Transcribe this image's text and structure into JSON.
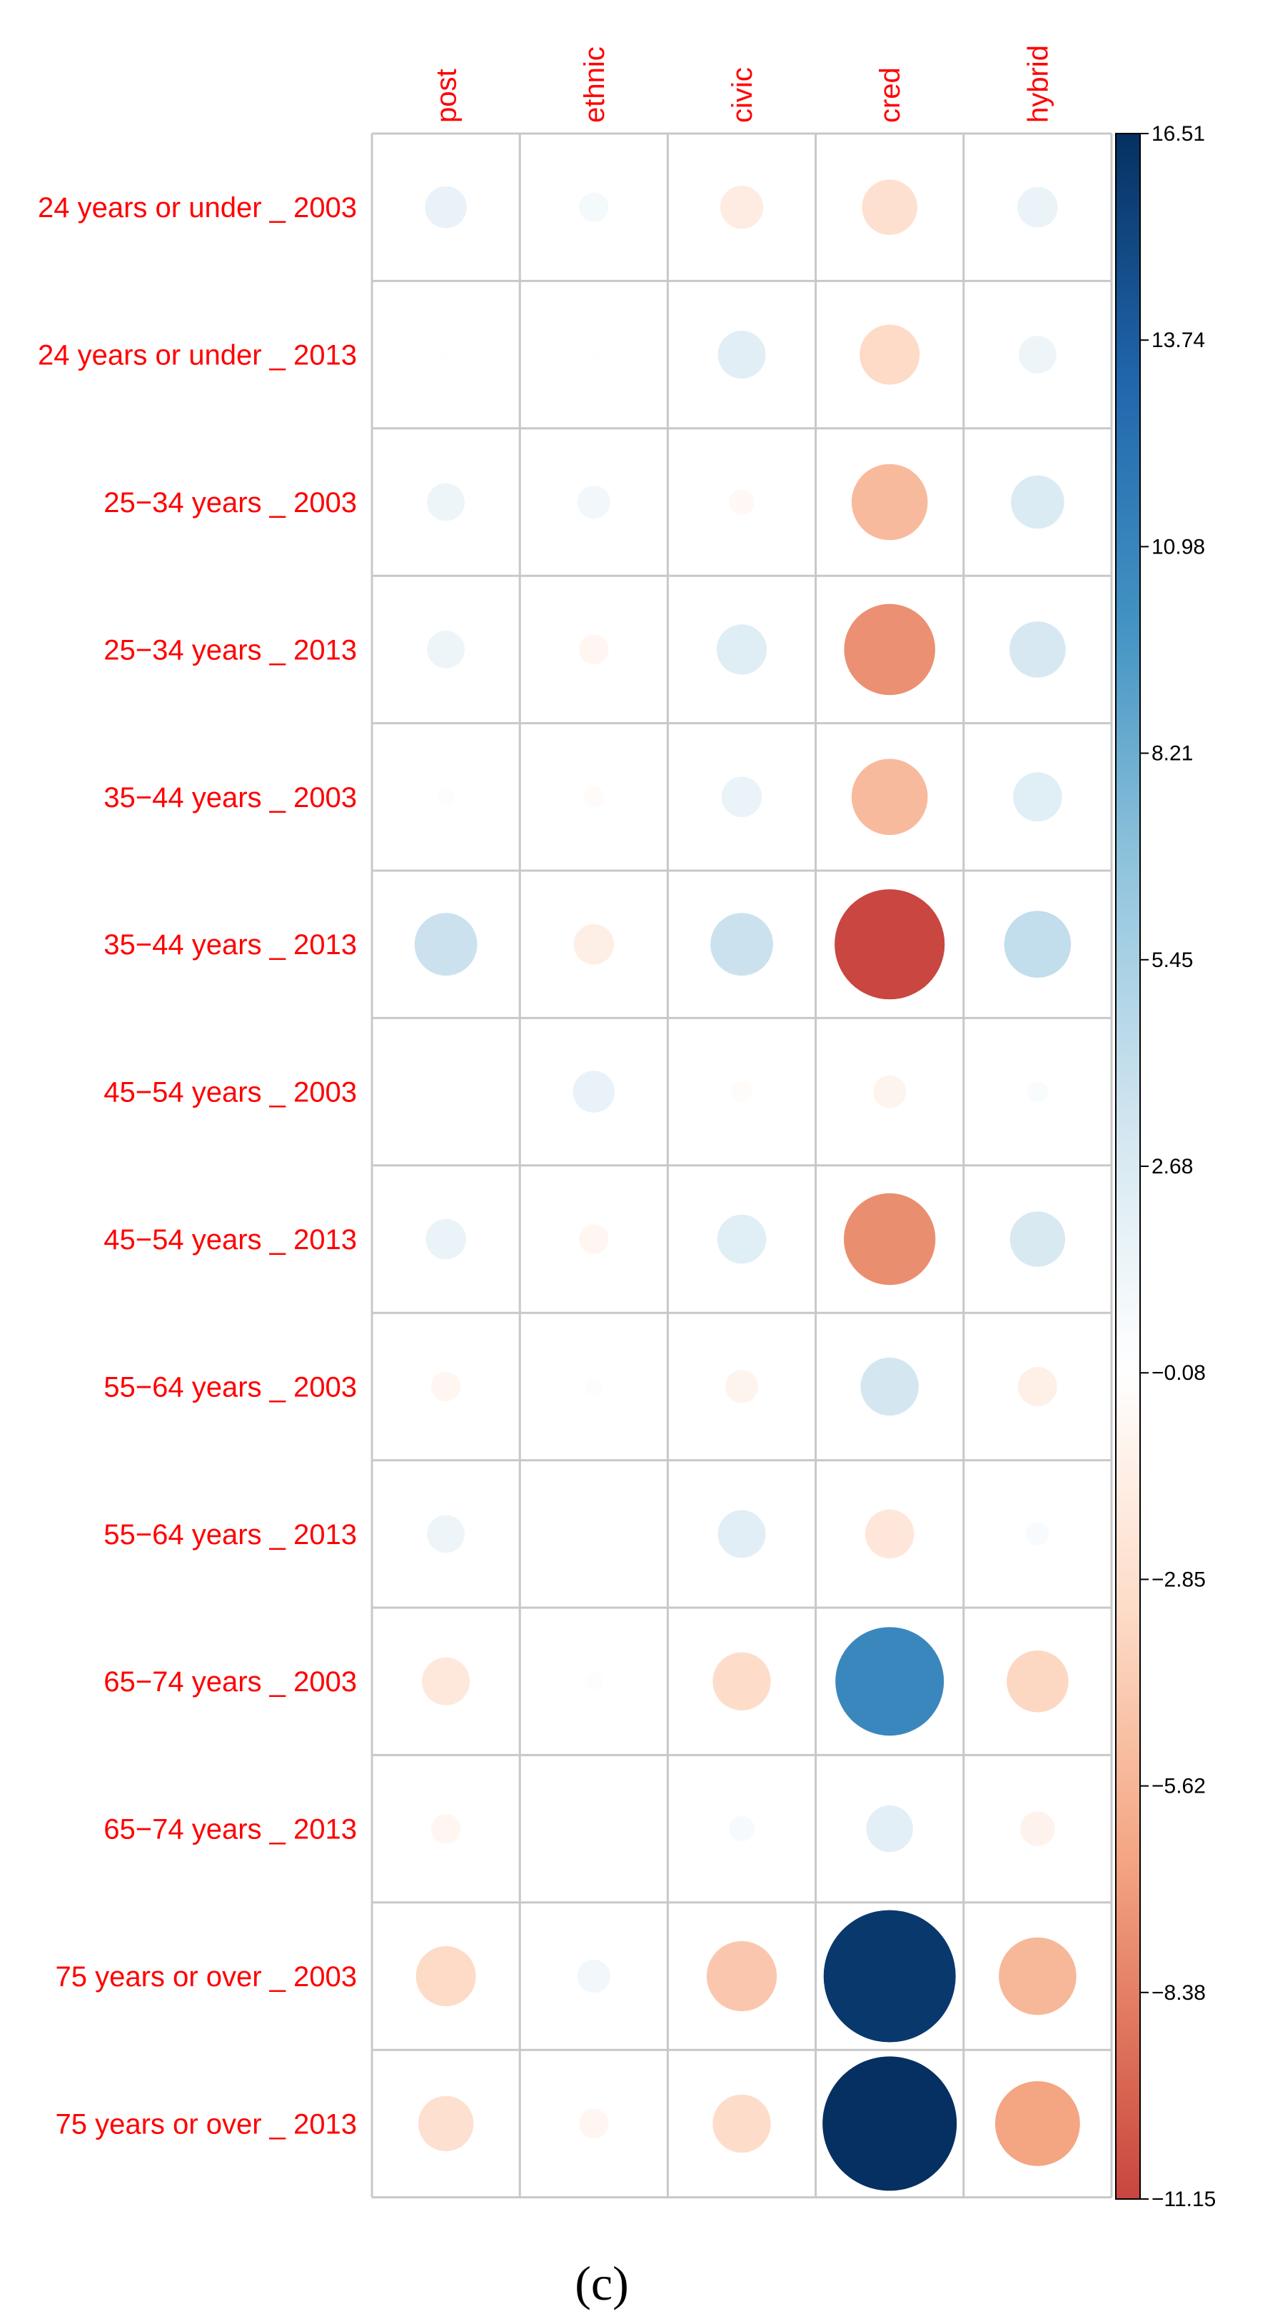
{
  "chart_data": {
    "type": "heatmap",
    "subtype": "correlation-circle-plot",
    "columns": [
      "post",
      "ethnic",
      "civic",
      "cred",
      "hybrid"
    ],
    "rows": [
      "24 years or under _ 2003",
      "24 years or under _ 2013",
      "25−34 years _ 2003",
      "25−34 years _ 2013",
      "35−44 years _ 2003",
      "35−44 years _ 2013",
      "45−54 years _ 2003",
      "45−54 years _ 2013",
      "55−64 years _ 2003",
      "55−64 years _ 2013",
      "65−74 years _ 2003",
      "65−74 years _ 2013",
      "75 years or over _ 2003",
      "75 years or over _ 2013"
    ],
    "values": [
      [
        1.6,
        0.8,
        -1.7,
        -2.8,
        1.5
      ],
      [
        0.1,
        0.1,
        2.1,
        -3.3,
        1.3
      ],
      [
        1.3,
        1.0,
        -0.6,
        -5.3,
        2.6
      ],
      [
        1.3,
        -0.8,
        2.3,
        -7.6,
        2.9
      ],
      [
        0.3,
        -0.4,
        1.5,
        -5.3,
        2.2
      ],
      [
        3.6,
        -1.5,
        3.6,
        -11.1,
        4.1
      ],
      [
        0.0,
        1.6,
        -0.4,
        -1.0,
        0.4
      ],
      [
        1.5,
        -0.8,
        2.2,
        -7.7,
        2.8
      ],
      [
        -0.8,
        0.3,
        -1.0,
        3.1,
        -1.4
      ],
      [
        1.3,
        0.0,
        2.1,
        -2.2,
        0.5
      ],
      [
        -2.1,
        0.3,
        -3.1,
        10.8,
        -3.5
      ],
      [
        -0.8,
        0.0,
        0.6,
        2.0,
        -1.1
      ],
      [
        -3.3,
        1.0,
        -4.5,
        16.0,
        -5.5
      ],
      [
        -2.8,
        -0.8,
        -3.1,
        16.5,
        -6.6
      ]
    ],
    "colorbar": {
      "min": -11.15,
      "max": 16.51,
      "ticks": [
        "16.51",
        "13.74",
        "10.98",
        "8.21",
        "5.45",
        "2.68",
        "−0.08",
        "−2.85",
        "−5.62",
        "−8.38",
        "−11.15"
      ],
      "palette_low_to_high": [
        "#67001f",
        "#b2182b",
        "#d6604d",
        "#f4a582",
        "#fddbc7",
        "#ffffff",
        "#d1e5f0",
        "#92c5de",
        "#4393c3",
        "#2166ac",
        "#053061"
      ]
    },
    "label_color": "#ff0000",
    "grid_color": "#c8c8c8",
    "panel_label": "(c)"
  }
}
